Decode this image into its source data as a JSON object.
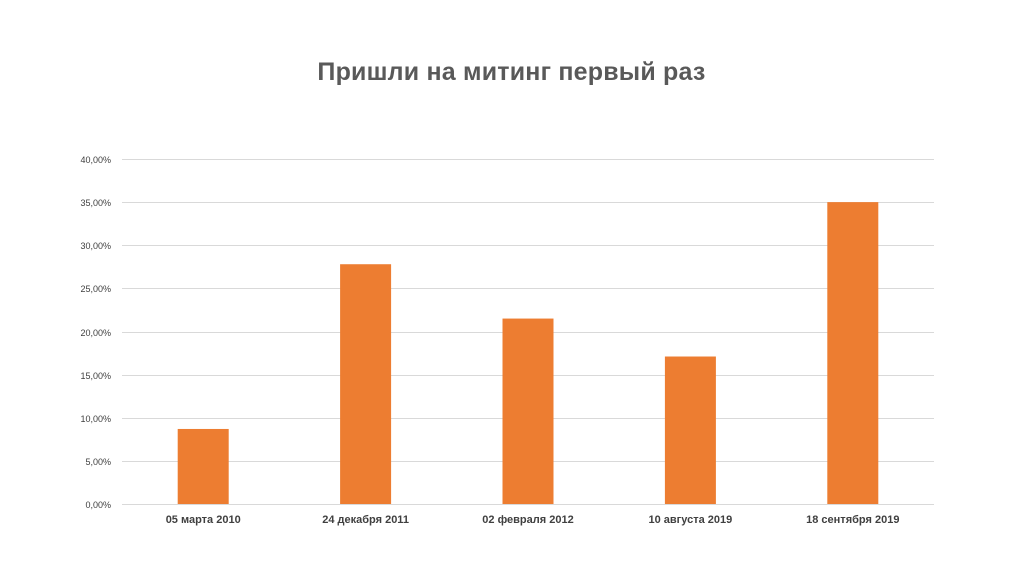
{
  "chart_data": {
    "type": "bar",
    "title": "Пришли на митинг первый раз",
    "categories": [
      "05 марта 2010",
      "24 декабря 2011",
      "02 февраля 2012",
      "10 августа 2019",
      "18 сентября 2019"
    ],
    "values": [
      0.087,
      0.278,
      0.215,
      0.171,
      0.35
    ],
    "ylim": [
      0,
      0.4
    ],
    "yticks": [
      0,
      0.05,
      0.1,
      0.15,
      0.2,
      0.25,
      0.3,
      0.35,
      0.4
    ],
    "ytick_labels": [
      "0,00%",
      "5,00%",
      "10,00%",
      "15,00%",
      "20,00%",
      "25,00%",
      "30,00%",
      "35,00%",
      "40,00%"
    ],
    "grid": true,
    "legend": "none",
    "colors": {
      "bar": "#ED7D31",
      "grid": "#D9D9D9",
      "title": "#595959",
      "tick_label": "#404040",
      "category_label": "#404040"
    }
  }
}
